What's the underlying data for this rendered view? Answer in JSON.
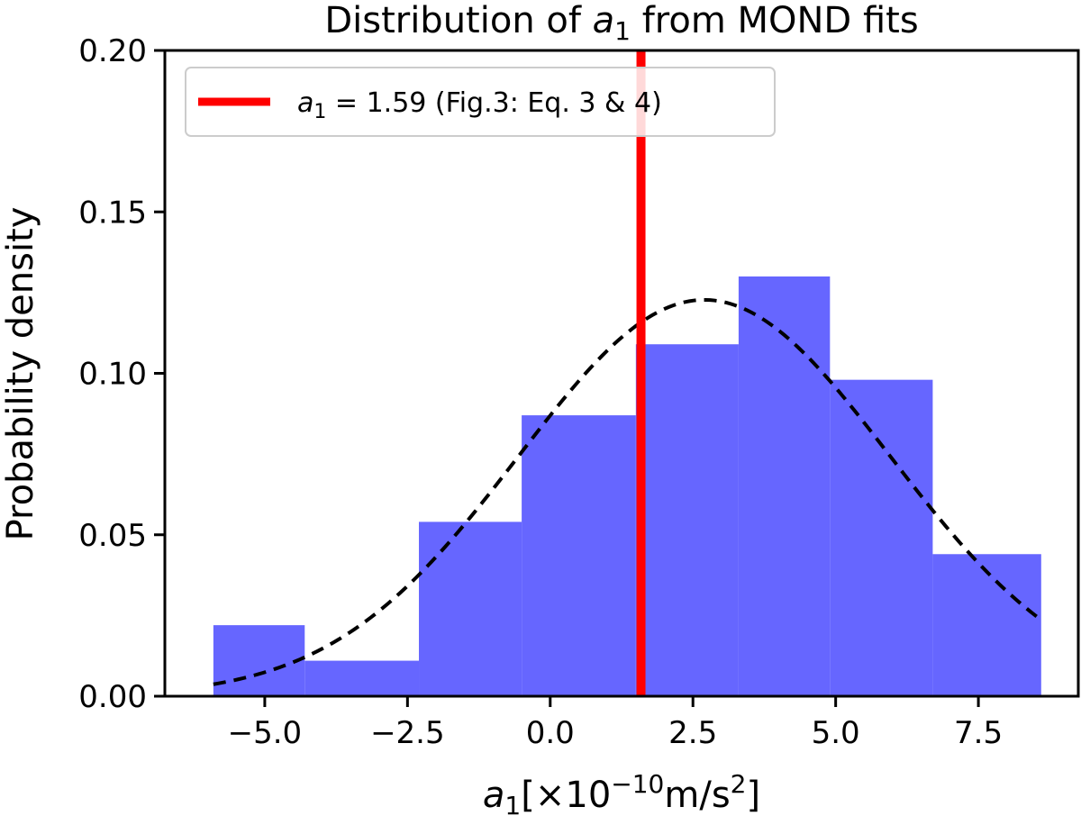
{
  "chart_data": {
    "type": "histogram",
    "title": {
      "prefix": "Distribution of ",
      "symbol": "a",
      "subscript": "1",
      "suffix": " from MOND fits"
    },
    "xlabel": {
      "symbol": "a",
      "subscript": "1",
      "unit_open": "[×10",
      "exponent": "−10",
      "unit_mid": "m/s",
      "unit_exp": "2",
      "unit_close": "]"
    },
    "ylabel": "Probability density",
    "xlim": [
      -6.75,
      9.25
    ],
    "ylim": [
      0,
      0.2
    ],
    "xticks": [
      -5.0,
      -2.5,
      0.0,
      2.5,
      5.0,
      7.5
    ],
    "xtick_labels": [
      "−5.0",
      "−2.5",
      "0.0",
      "2.5",
      "5.0",
      "7.5"
    ],
    "yticks": [
      0.0,
      0.05,
      0.1,
      0.15,
      0.2
    ],
    "ytick_labels": [
      "0.00",
      "0.05",
      "0.10",
      "0.15",
      "0.20"
    ],
    "bar_color": "#6666ff",
    "bins": [
      {
        "x0": -5.9,
        "x1": -4.3,
        "density": 0.022
      },
      {
        "x0": -4.3,
        "x1": -2.3,
        "density": 0.011
      },
      {
        "x0": -2.3,
        "x1": -0.5,
        "density": 0.054
      },
      {
        "x0": -0.5,
        "x1": 1.5,
        "density": 0.087
      },
      {
        "x0": 1.5,
        "x1": 3.3,
        "density": 0.109
      },
      {
        "x0": 3.3,
        "x1": 4.9,
        "density": 0.13
      },
      {
        "x0": 4.9,
        "x1": 6.7,
        "density": 0.098
      },
      {
        "x0": 6.7,
        "x1": 8.6,
        "density": 0.044
      }
    ],
    "gaussian_fit": {
      "mean": 2.7,
      "sigma": 3.25,
      "x_range": [
        -5.9,
        8.6
      ],
      "color": "#000000",
      "style": "dashed"
    },
    "vertical_line": {
      "x": 1.59,
      "color": "#ff0000"
    },
    "legend": {
      "position": "top-left",
      "entry": {
        "symbol": "a",
        "subscript": "1",
        "text": " = 1.59 (Fig.3: Eq. 3 & 4)"
      }
    }
  }
}
